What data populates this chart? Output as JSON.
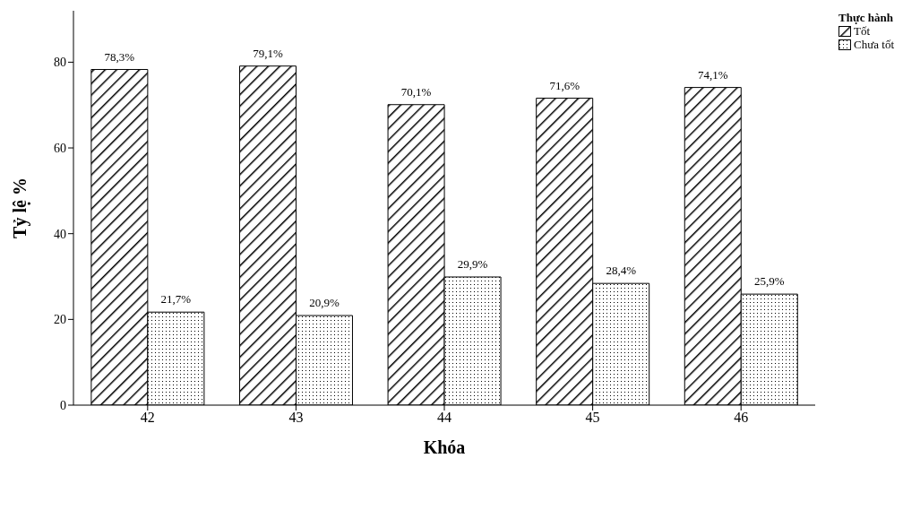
{
  "chart_data": {
    "type": "bar",
    "xlabel": "Khóa",
    "ylabel": "Tỷ lệ %",
    "legend_title": "Thực hành",
    "categories": [
      "42",
      "43",
      "44",
      "45",
      "46"
    ],
    "series": [
      {
        "name": "Tốt",
        "color": "#000000",
        "values": [
          78.3,
          79.1,
          70.1,
          71.6,
          74.1
        ],
        "value_labels": [
          "78,3%",
          "79,1%",
          "70,1%",
          "71,6%",
          "74,1%"
        ]
      },
      {
        "name": "Chưa tốt",
        "color": "#000000",
        "values": [
          21.7,
          20.9,
          29.9,
          28.4,
          25.9
        ],
        "value_labels": [
          "21,7%",
          "20,9%",
          "29,9%",
          "28,4%",
          "25,9%"
        ]
      }
    ],
    "ylim": [
      0,
      92
    ],
    "yticks": [
      0,
      20,
      40,
      60,
      80
    ],
    "grid": false,
    "legend": "top right"
  }
}
